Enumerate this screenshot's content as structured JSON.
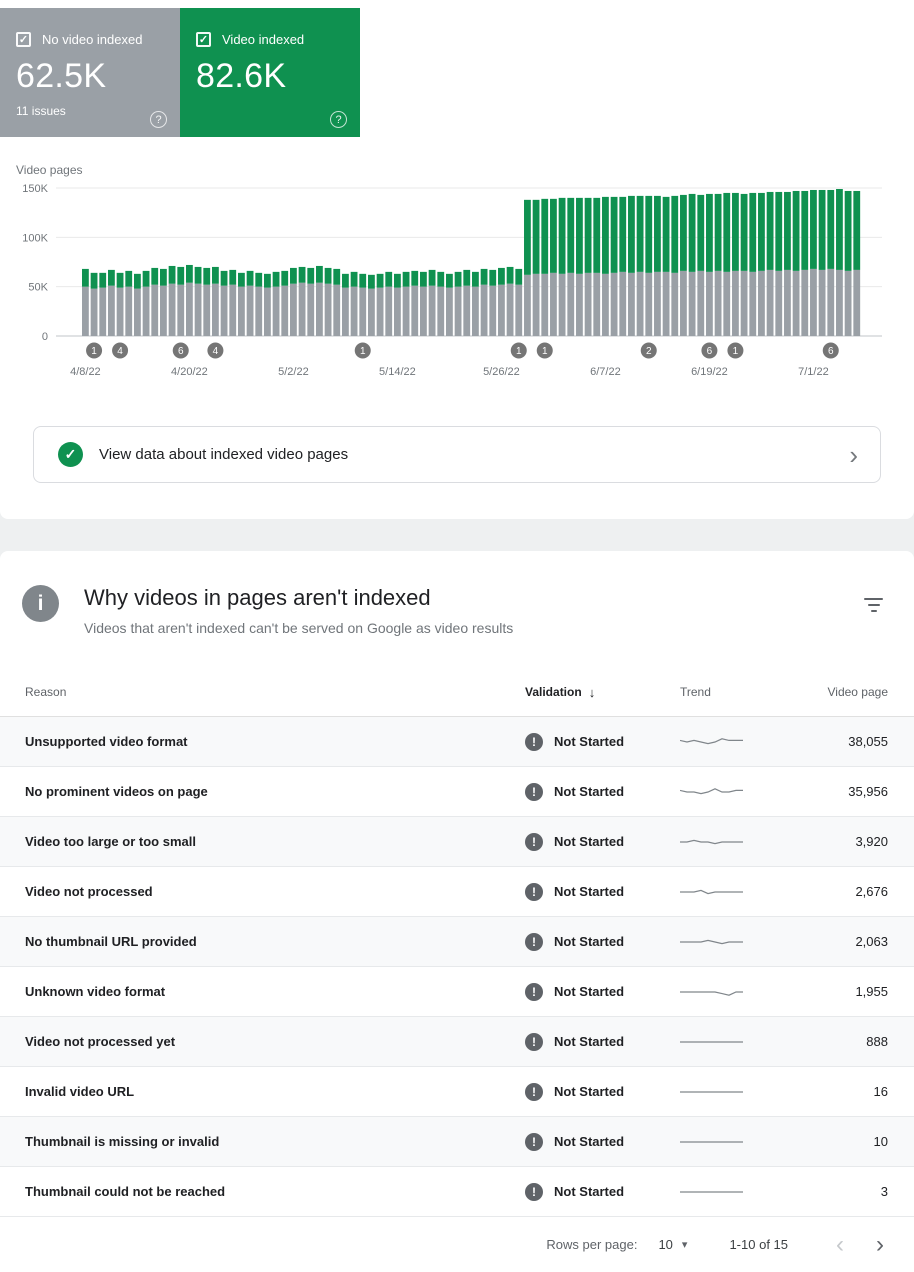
{
  "colors": {
    "green": "#0f9150",
    "gray": "#9aa0a6",
    "badge_gray": "#757575",
    "error_icon_gray": "#5f6368"
  },
  "icons": {
    "check": "✓",
    "question": "?",
    "info": "i",
    "exclamation": "!",
    "chevron_right": "›",
    "chevron_left": "‹",
    "caret_down": "▾",
    "sort_arrow": "↓",
    "filter": "filter-list-icon"
  },
  "stat_cards": {
    "not_indexed": {
      "label": "No video indexed",
      "value": "62.5K",
      "sub": "11 issues",
      "checked": true
    },
    "indexed": {
      "label": "Video indexed",
      "value": "82.6K",
      "checked": true
    }
  },
  "chart_data": {
    "type": "bar",
    "stacked": true,
    "title": "Video pages",
    "xlabel": "",
    "ylabel": "Video pages",
    "ylim": [
      0,
      150000
    ],
    "unit": "thousands (K)",
    "grid": true,
    "yticks": [
      "150K",
      "100K",
      "50K",
      "0"
    ],
    "x_ticks": [
      {
        "day": 0,
        "label": "4/8/22"
      },
      {
        "day": 12,
        "label": "4/20/22"
      },
      {
        "day": 24,
        "label": "5/2/22"
      },
      {
        "day": 36,
        "label": "5/14/22"
      },
      {
        "day": 48,
        "label": "5/26/22"
      },
      {
        "day": 60,
        "label": "6/7/22"
      },
      {
        "day": 72,
        "label": "6/19/22"
      },
      {
        "day": 84,
        "label": "7/1/22"
      }
    ],
    "markers": [
      {
        "day": 1,
        "label": "1"
      },
      {
        "day": 4,
        "label": "4"
      },
      {
        "day": 11,
        "label": "6"
      },
      {
        "day": 15,
        "label": "4"
      },
      {
        "day": 32,
        "label": "1"
      },
      {
        "day": 50,
        "label": "1"
      },
      {
        "day": 53,
        "label": "1"
      },
      {
        "day": 65,
        "label": "2"
      },
      {
        "day": 72,
        "label": "6"
      },
      {
        "day": 75,
        "label": "1"
      },
      {
        "day": 86,
        "label": "6"
      }
    ],
    "series": [
      {
        "name": "No video indexed",
        "color": "#9aa0a6",
        "values": [
          50,
          48,
          49,
          51,
          49,
          50,
          48,
          50,
          52,
          51,
          53,
          52,
          54,
          53,
          52,
          53,
          51,
          52,
          50,
          51,
          50,
          49,
          50,
          51,
          53,
          54,
          53,
          54,
          53,
          52,
          49,
          50,
          49,
          48,
          49,
          50,
          49,
          50,
          51,
          50,
          51,
          50,
          49,
          50,
          51,
          50,
          52,
          51,
          52,
          53,
          52,
          62,
          63,
          63,
          64,
          63,
          64,
          63,
          64,
          64,
          63,
          64,
          65,
          64,
          65,
          64,
          65,
          65,
          64,
          66,
          65,
          66,
          65,
          66,
          65,
          66,
          66,
          65,
          66,
          67,
          66,
          67,
          66,
          67,
          68,
          67,
          68,
          67,
          66,
          67
        ]
      },
      {
        "name": "Video indexed",
        "color": "#0f9150",
        "values": [
          18,
          16,
          15,
          16,
          15,
          16,
          15,
          16,
          17,
          17,
          18,
          18,
          18,
          17,
          17,
          17,
          15,
          15,
          14,
          15,
          14,
          14,
          15,
          15,
          16,
          16,
          16,
          17,
          16,
          16,
          14,
          15,
          14,
          14,
          14,
          15,
          14,
          15,
          15,
          15,
          16,
          15,
          14,
          15,
          16,
          15,
          16,
          16,
          17,
          17,
          16,
          76,
          75,
          76,
          75,
          77,
          76,
          77,
          76,
          76,
          78,
          77,
          76,
          78,
          77,
          78,
          77,
          76,
          78,
          77,
          79,
          77,
          79,
          78,
          80,
          79,
          78,
          80,
          79,
          79,
          80,
          79,
          81,
          80,
          80,
          81,
          80,
          82,
          81,
          80
        ]
      }
    ]
  },
  "view_data_bar": {
    "label": "View data about indexed video pages"
  },
  "section": {
    "title": "Why videos in pages aren't indexed",
    "subtitle": "Videos that aren't indexed can't be served on Google as video results"
  },
  "table": {
    "columns": [
      "Reason",
      "Validation",
      "Trend",
      "Video page"
    ],
    "sorted_by": "Validation",
    "rows": [
      {
        "reason": "Unsupported video format",
        "validation": "Not Started",
        "pages": "38,055",
        "trend": [
          6,
          5,
          6,
          5,
          4,
          5,
          7,
          6,
          6,
          6
        ]
      },
      {
        "reason": "No prominent videos on page",
        "validation": "Not Started",
        "pages": "35,956",
        "trend": [
          6,
          5,
          5,
          4,
          5,
          7,
          5,
          5,
          6,
          6
        ]
      },
      {
        "reason": "Video too large or too small",
        "validation": "Not Started",
        "pages": "3,920",
        "trend": [
          5,
          5,
          6,
          5,
          5,
          4,
          5,
          5,
          5,
          5
        ]
      },
      {
        "reason": "Video not processed",
        "validation": "Not Started",
        "pages": "2,676",
        "trend": [
          5,
          5,
          5,
          6,
          4,
          5,
          5,
          5,
          5,
          5
        ]
      },
      {
        "reason": "No thumbnail URL provided",
        "validation": "Not Started",
        "pages": "2,063",
        "trend": [
          5,
          5,
          5,
          5,
          6,
          5,
          4,
          5,
          5,
          5
        ]
      },
      {
        "reason": "Unknown video format",
        "validation": "Not Started",
        "pages": "1,955",
        "trend": [
          5,
          5,
          5,
          5,
          5,
          5,
          4,
          3,
          5,
          5
        ]
      },
      {
        "reason": "Video not processed yet",
        "validation": "Not Started",
        "pages": "888",
        "trend": [
          5,
          5,
          5,
          5,
          5,
          5,
          5,
          5,
          5,
          5
        ]
      },
      {
        "reason": "Invalid video URL",
        "validation": "Not Started",
        "pages": "16",
        "trend": [
          5,
          5,
          5,
          5,
          5,
          5,
          5,
          5,
          5,
          5
        ]
      },
      {
        "reason": "Thumbnail is missing or invalid",
        "validation": "Not Started",
        "pages": "10",
        "trend": [
          5,
          5,
          5,
          5,
          5,
          5,
          5,
          5,
          5,
          5
        ]
      },
      {
        "reason": "Thumbnail could not be reached",
        "validation": "Not Started",
        "pages": "3",
        "trend": [
          5,
          5,
          5,
          5,
          5,
          5,
          5,
          5,
          5,
          5
        ]
      }
    ]
  },
  "pagination": {
    "rows_per_page_label": "Rows per page:",
    "rows_per_page": "10",
    "range": "1-10 of 15"
  }
}
